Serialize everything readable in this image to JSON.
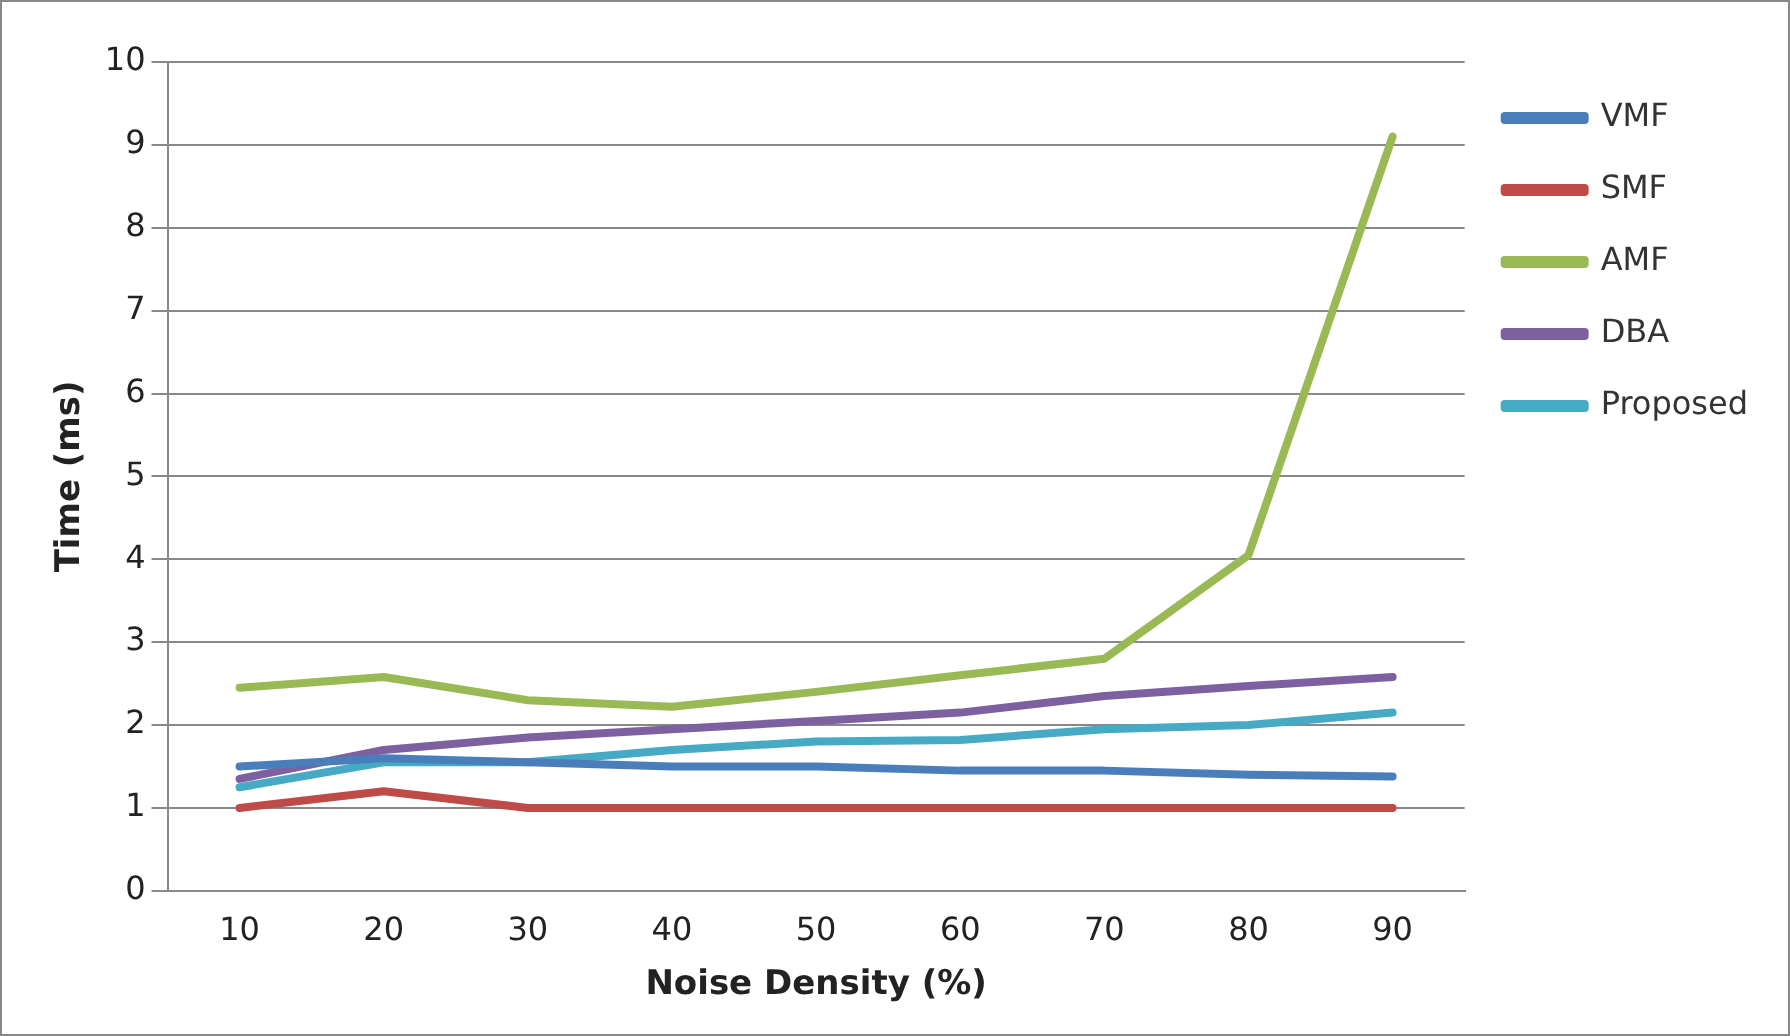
{
  "chart_data": {
    "type": "line",
    "xlabel": "Noise Density (%)",
    "ylabel": "Time (ms)",
    "categories": [
      "10",
      "20",
      "30",
      "40",
      "50",
      "60",
      "70",
      "80",
      "90"
    ],
    "series": [
      {
        "name": "VMF",
        "color": "#4a7ebb",
        "values": [
          1.5,
          1.6,
          1.55,
          1.5,
          1.5,
          1.45,
          1.45,
          1.4,
          1.38
        ]
      },
      {
        "name": "SMF",
        "color": "#be4b48",
        "values": [
          1.0,
          1.2,
          1.0,
          1.0,
          1.0,
          1.0,
          1.0,
          1.0,
          1.0
        ]
      },
      {
        "name": "AMF",
        "color": "#98b954",
        "values": [
          2.45,
          2.58,
          2.3,
          2.22,
          2.4,
          2.6,
          2.8,
          4.05,
          9.1
        ]
      },
      {
        "name": "DBA",
        "color": "#7d60a0",
        "values": [
          1.35,
          1.7,
          1.85,
          1.95,
          2.05,
          2.15,
          2.35,
          2.47,
          2.58
        ]
      },
      {
        "name": "Proposed",
        "color": "#46aac5",
        "values": [
          1.25,
          1.55,
          1.55,
          1.7,
          1.8,
          1.82,
          1.95,
          2.0,
          2.15
        ]
      }
    ],
    "ylim": [
      0,
      10
    ],
    "yticks": [
      0,
      1,
      2,
      3,
      4,
      5,
      6,
      7,
      8,
      9,
      10
    ],
    "grid": "y",
    "legend": "right",
    "marker": "none",
    "line_style": "solid"
  }
}
